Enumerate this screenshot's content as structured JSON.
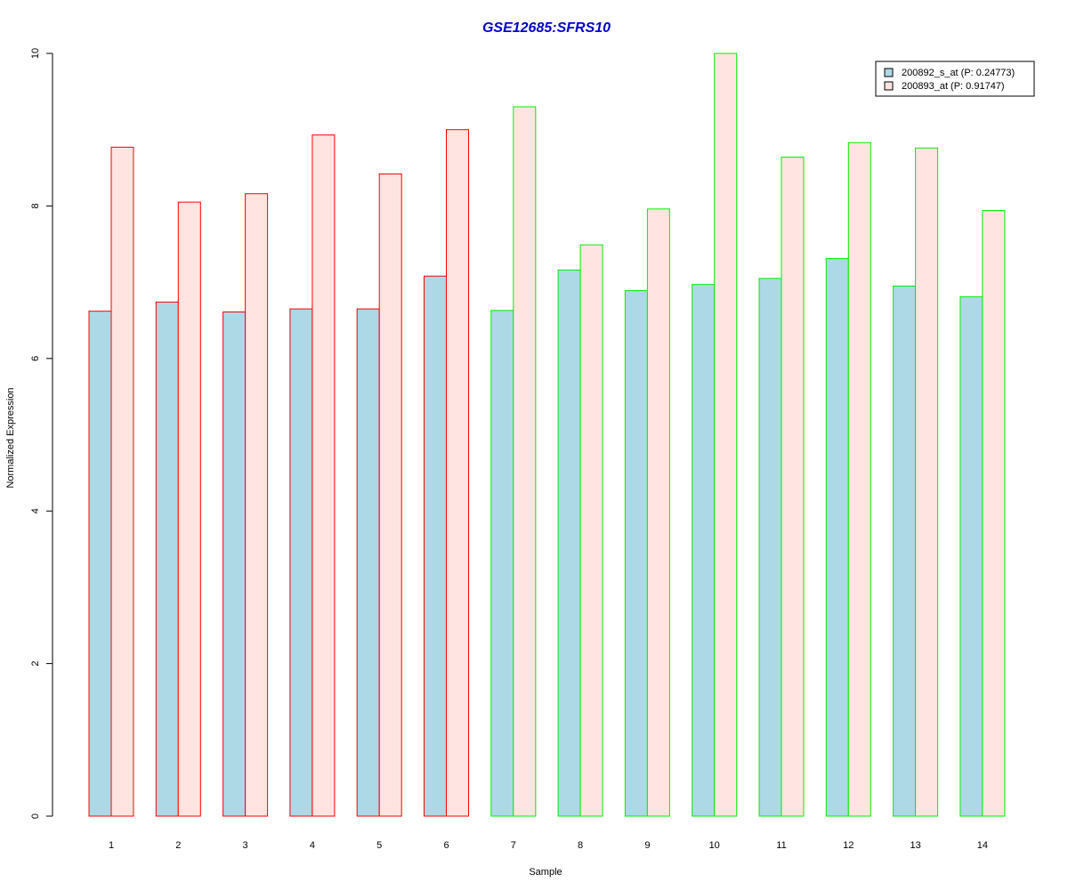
{
  "chart_data": {
    "type": "bar",
    "title": "GSE12685:SFRS10",
    "title_color": "#0000cc",
    "xlabel": "Sample",
    "ylabel": "Normalized Expression",
    "ylim": [
      0,
      10
    ],
    "yticks": [
      0,
      2,
      4,
      6,
      8,
      10
    ],
    "categories": [
      "1",
      "2",
      "3",
      "4",
      "5",
      "6",
      "7",
      "8",
      "9",
      "10",
      "11",
      "12",
      "13",
      "14"
    ],
    "series": [
      {
        "name": "200892_s_at (P: 0.24773)",
        "fill": "#add8e6",
        "values": [
          6.62,
          6.74,
          6.61,
          6.65,
          6.65,
          7.08,
          6.63,
          7.16,
          6.89,
          6.97,
          7.05,
          7.31,
          6.95,
          6.81
        ]
      },
      {
        "name": "200893_at (P: 0.91747)",
        "fill": "#ffe4e1",
        "values": [
          8.77,
          8.05,
          8.16,
          8.93,
          8.42,
          9.0,
          9.3,
          7.49,
          7.96,
          10.0,
          8.64,
          8.83,
          8.76,
          7.94
        ]
      }
    ],
    "group_border_colors": [
      "#ff0000",
      "#ff0000",
      "#ff0000",
      "#ff0000",
      "#ff0000",
      "#ff0000",
      "#00ee00",
      "#00ee00",
      "#00ee00",
      "#00ee00",
      "#00ee00",
      "#00ee00",
      "#00ee00",
      "#00ee00"
    ],
    "legend_position": "top-right",
    "grid": false
  }
}
